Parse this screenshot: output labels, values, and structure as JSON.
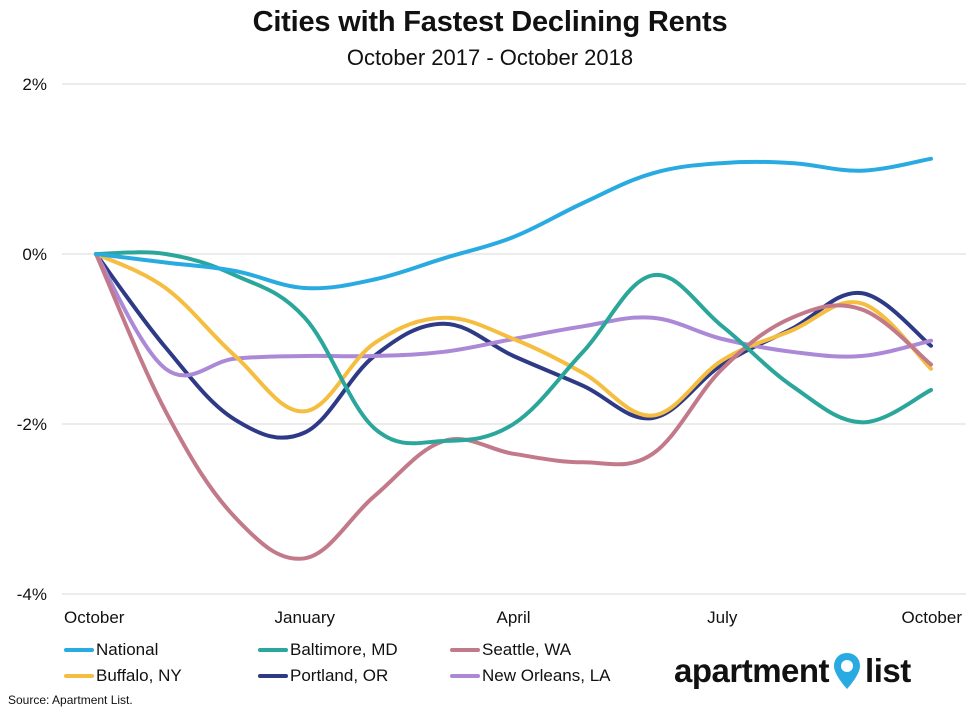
{
  "title": "Cities with Fastest Declining Rents",
  "subtitle": "October 2017 - October 2018",
  "source": "Source: Apartment List.",
  "brand": {
    "left": "apartment",
    "right": "list",
    "pin_color": "#29abe2"
  },
  "chart_data": {
    "type": "line",
    "title": "Cities with Fastest Declining Rents",
    "subtitle": "October 2017 - October 2018",
    "xlabel": "",
    "ylabel": "",
    "x": [
      "2017-10",
      "2017-11",
      "2017-12",
      "2018-01",
      "2018-02",
      "2018-03",
      "2018-04",
      "2018-05",
      "2018-06",
      "2018-07",
      "2018-08",
      "2018-09",
      "2018-10"
    ],
    "xtick_labels": [
      "October",
      "January",
      "April",
      "July",
      "October"
    ],
    "xtick_index": [
      0,
      3,
      6,
      9,
      12
    ],
    "ylim": [
      -4,
      2
    ],
    "yticks": [
      2,
      0,
      -2,
      -4
    ],
    "ytick_labels": [
      "2%",
      "0%",
      "-2%",
      "-4%"
    ],
    "grid": "horizontal",
    "legend_position": "bottom",
    "series": [
      {
        "name": "National",
        "color": "#29abe2",
        "values": [
          0.0,
          -0.1,
          -0.2,
          -0.4,
          -0.3,
          -0.05,
          0.2,
          0.6,
          0.95,
          1.07,
          1.07,
          0.98,
          1.12
        ]
      },
      {
        "name": "Baltimore, MD",
        "color": "#2aa69a",
        "values": [
          0.0,
          0.0,
          -0.25,
          -0.75,
          -2.05,
          -2.2,
          -2.0,
          -1.15,
          -0.25,
          -0.85,
          -1.55,
          -1.98,
          -1.6
        ]
      },
      {
        "name": "Seattle, WA",
        "color": "#c27a8a",
        "values": [
          0.0,
          -1.85,
          -3.1,
          -3.58,
          -2.85,
          -2.2,
          -2.35,
          -2.45,
          -2.35,
          -1.35,
          -0.75,
          -0.65,
          -1.3
        ]
      },
      {
        "name": "Buffalo, NY",
        "color": "#f5be41",
        "values": [
          0.0,
          -0.4,
          -1.2,
          -1.85,
          -1.05,
          -0.75,
          -1.0,
          -1.4,
          -1.9,
          -1.25,
          -0.9,
          -0.58,
          -1.35
        ]
      },
      {
        "name": "Portland, OR",
        "color": "#2e3a86",
        "values": [
          0.0,
          -1.1,
          -1.95,
          -2.1,
          -1.2,
          -0.82,
          -1.2,
          -1.55,
          -1.93,
          -1.3,
          -0.88,
          -0.46,
          -1.08
        ]
      },
      {
        "name": "New Orleans, LA",
        "color": "#ab89d6",
        "values": [
          0.0,
          -1.35,
          -1.23,
          -1.2,
          -1.2,
          -1.15,
          -1.0,
          -0.85,
          -0.75,
          -1.0,
          -1.15,
          -1.2,
          -1.02
        ]
      }
    ]
  }
}
